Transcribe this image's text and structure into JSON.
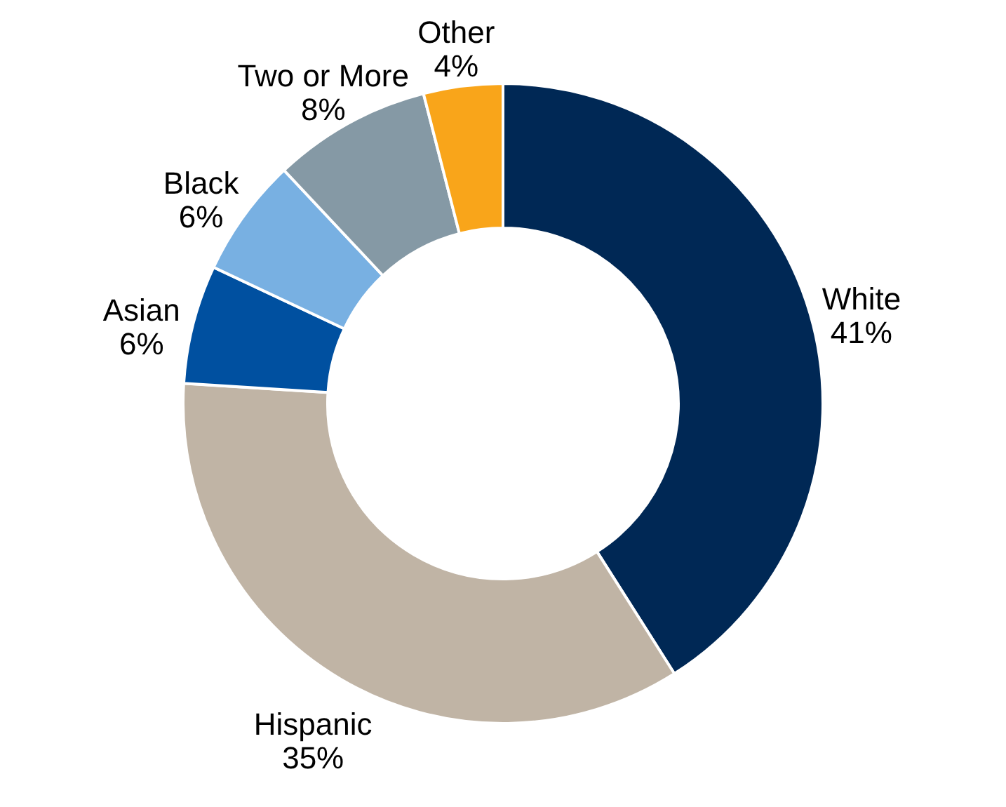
{
  "chart_data": {
    "type": "donut",
    "categories": [
      "White",
      "Hispanic",
      "Asian",
      "Black",
      "Two or More",
      "Other"
    ],
    "values": [
      41,
      35,
      6,
      6,
      8,
      4
    ],
    "value_labels": [
      "41%",
      "35%",
      "6%",
      "6%",
      "8%",
      "4%"
    ],
    "colors": [
      "#002855",
      "#c0b4a5",
      "#0050a0",
      "#78b0e2",
      "#8599a5",
      "#f9a51a"
    ],
    "legend": false
  }
}
